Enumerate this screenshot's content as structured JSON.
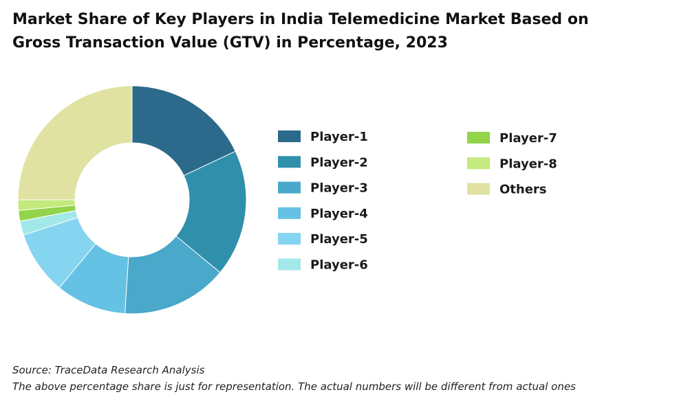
{
  "title": "Market Share of Key Players in India Telemedicine Market Based on Gross Transaction Value (GTV) in Percentage, 2023",
  "source": "Source: TraceData Research Analysis",
  "note": "The above percentage share is just for representation. The actual numbers will be different from actual ones",
  "chart_data": {
    "type": "pie",
    "donut": true,
    "title": "Market Share of Key Players in India Telemedicine Market Based on Gross Transaction Value (GTV) in Percentage, 2023",
    "unit": "%",
    "legend_position": "right",
    "series": [
      {
        "name": "Player-1",
        "value": 18.0,
        "color": "#2b6a8a"
      },
      {
        "name": "Player-2",
        "value": 18.0,
        "color": "#3090ab"
      },
      {
        "name": "Player-3",
        "value": 15.0,
        "color": "#4aa8ca"
      },
      {
        "name": "Player-4",
        "value": 10.0,
        "color": "#66c2e4"
      },
      {
        "name": "Player-5",
        "value": 9.0,
        "color": "#85d4f0"
      },
      {
        "name": "Player-6",
        "value": 2.0,
        "color": "#a3e8e8"
      },
      {
        "name": "Player-7",
        "value": 1.5,
        "color": "#93d44a"
      },
      {
        "name": "Player-8",
        "value": 1.5,
        "color": "#c4e97c"
      },
      {
        "name": "Others",
        "value": 25.0,
        "color": "#e0e2a2"
      }
    ]
  }
}
